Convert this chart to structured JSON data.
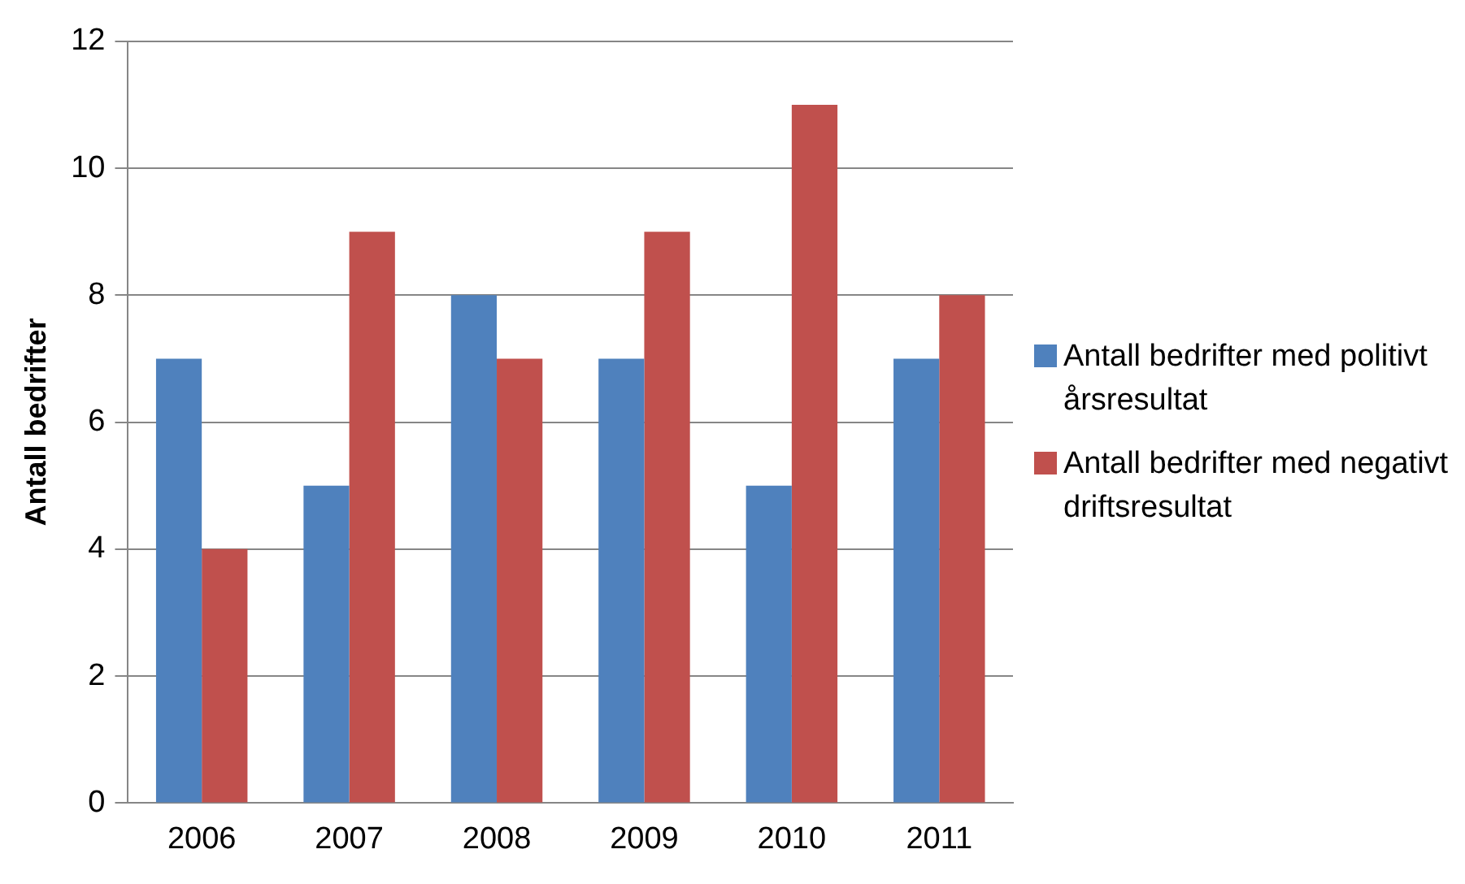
{
  "chart_data": {
    "type": "bar",
    "ylabel": "Antall bedrifter",
    "categories": [
      "2006",
      "2007",
      "2008",
      "2009",
      "2010",
      "2011"
    ],
    "series": [
      {
        "name": "Antall bedrifter med politivt årsresultat",
        "color": "#4f81bd",
        "values": [
          7,
          5,
          8,
          7,
          5,
          7
        ]
      },
      {
        "name": "Antall bedrifter med negativt driftsresultat",
        "color": "#c0504d",
        "values": [
          4,
          9,
          7,
          9,
          11,
          8
        ]
      }
    ],
    "ylim": [
      0,
      12
    ],
    "yticks": [
      0,
      2,
      4,
      6,
      8,
      10,
      12
    ],
    "grid": "y",
    "legend": "right"
  }
}
